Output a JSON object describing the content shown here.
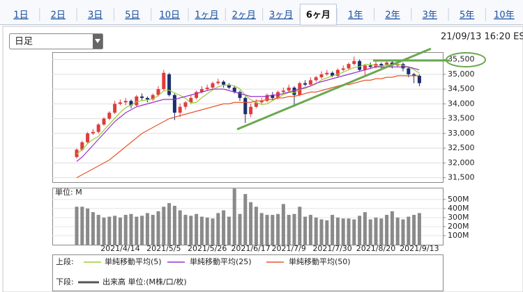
{
  "tabs": [
    "1日",
    "2日",
    "3日",
    "5日",
    "10日",
    "1ヶ月",
    "2ヶ月",
    "3ヶ月",
    "6ヶ月",
    "1年",
    "2年",
    "3年",
    "5年",
    "10年"
  ],
  "selected_tab": 8,
  "dropdown": "日足",
  "timestamp": "21/09/13 16:20 EST",
  "chart_data": {
    "type": "candlestick",
    "categories": [
      null,
      null,
      null,
      null,
      null,
      null,
      null,
      null,
      "2021/4/14",
      null,
      null,
      null,
      null,
      null,
      null,
      null,
      "2021/5/5",
      null,
      null,
      null,
      null,
      null,
      null,
      null,
      "2021/5/26",
      null,
      null,
      null,
      null,
      null,
      null,
      null,
      "2021/6/17",
      null,
      null,
      null,
      null,
      null,
      null,
      "2021/7/9",
      null,
      null,
      null,
      null,
      null,
      null,
      null,
      "2021/7/30",
      null,
      null,
      null,
      null,
      null,
      null,
      null,
      "2021/8/20",
      null,
      null,
      null,
      null,
      null,
      null,
      null,
      "2021/9/13"
    ],
    "open": [
      32200,
      32450,
      32700,
      33000,
      33050,
      33300,
      33500,
      33700,
      34000,
      34050,
      34100,
      33950,
      34250,
      34200,
      34150,
      34300,
      34500,
      35000,
      34300,
      33700,
      33900,
      34050,
      34200,
      34400,
      34500,
      34550,
      34700,
      34750,
      34650,
      34550,
      34400,
      34200,
      33650,
      33900,
      34050,
      34100,
      34300,
      34200,
      34400,
      34450,
      34550,
      34300,
      34700,
      34650,
      34800,
      34900,
      35000,
      35050,
      34950,
      35150,
      35200,
      35350,
      35450,
      35150,
      35300,
      35250,
      35350,
      35300,
      35400,
      35300,
      35350,
      35200,
      35000,
      34950
    ],
    "high": [
      32500,
      32750,
      33050,
      33150,
      33350,
      33550,
      33750,
      34100,
      34150,
      34200,
      34150,
      34300,
      34350,
      34250,
      34350,
      34600,
      35150,
      35050,
      34350,
      34000,
      34100,
      34300,
      34450,
      34600,
      34650,
      34750,
      34850,
      34800,
      34700,
      34600,
      34450,
      34250,
      34000,
      34150,
      34200,
      34350,
      34400,
      34450,
      34550,
      34650,
      34600,
      34750,
      34800,
      34900,
      34950,
      35100,
      35150,
      35100,
      35200,
      35300,
      35400,
      35600,
      35500,
      35350,
      35400,
      35450,
      35400,
      35450,
      35450,
      35400,
      35400,
      35250,
      35050,
      35000
    ],
    "low": [
      32150,
      32400,
      32650,
      32950,
      33000,
      33250,
      33450,
      33650,
      33950,
      33950,
      33850,
      33900,
      34100,
      34050,
      34100,
      34250,
      34450,
      34250,
      33450,
      33550,
      33800,
      34000,
      34150,
      34350,
      34450,
      34500,
      34650,
      34550,
      34500,
      34350,
      34100,
      33350,
      33550,
      33850,
      34000,
      34050,
      34100,
      34150,
      34350,
      34400,
      33900,
      34250,
      34600,
      34600,
      34750,
      34850,
      34950,
      34900,
      34900,
      35100,
      35150,
      35300,
      35100,
      34950,
      35200,
      35200,
      35200,
      35250,
      35200,
      35250,
      35100,
      34900,
      34700,
      34600
    ],
    "close": [
      32450,
      32700,
      33000,
      33050,
      33300,
      33500,
      33700,
      34000,
      34050,
      34100,
      33950,
      34250,
      34200,
      34150,
      34300,
      34500,
      35050,
      34300,
      33700,
      33900,
      34050,
      34200,
      34400,
      34500,
      34550,
      34700,
      34750,
      34650,
      34550,
      34400,
      34200,
      33650,
      33900,
      34050,
      34100,
      34300,
      34200,
      34400,
      34450,
      34550,
      34300,
      34700,
      34650,
      34800,
      34900,
      35000,
      35050,
      34950,
      35150,
      35200,
      35350,
      35450,
      35150,
      35300,
      35250,
      35350,
      35300,
      35400,
      35300,
      35350,
      35200,
      35000,
      34950,
      34700
    ],
    "up_color": "#e03c3c",
    "down_color": "#1c2e6e",
    "series": [
      {
        "name": "単純移動平均(5)",
        "color": "#9acd32",
        "values": [
          32300,
          32450,
          32650,
          32800,
          32900,
          33110,
          33310,
          33510,
          33710,
          33870,
          33960,
          34070,
          34110,
          34130,
          34170,
          34280,
          34440,
          34460,
          34370,
          34290,
          34190,
          34030,
          34050,
          34210,
          34340,
          34470,
          34580,
          34630,
          34640,
          34610,
          34510,
          34290,
          34140,
          34040,
          33980,
          34000,
          34110,
          34210,
          34310,
          34380,
          34380,
          34480,
          34530,
          34600,
          34670,
          34810,
          34880,
          34940,
          35010,
          35070,
          35150,
          35230,
          35260,
          35330,
          35340,
          35300,
          35270,
          35320,
          35320,
          35340,
          35310,
          35250,
          35160,
          35040
        ]
      },
      {
        "name": "単純移動平均(25)",
        "color": "#9b30c8",
        "values": [
          32050,
          32200,
          32400,
          32600,
          32800,
          33000,
          33200,
          33400,
          33550,
          33700,
          33800,
          33900,
          33950,
          34000,
          34050,
          34100,
          34150,
          34150,
          34150,
          34200,
          34250,
          34300,
          34350,
          34400,
          34450,
          34500,
          34500,
          34500,
          34450,
          34400,
          34350,
          34300,
          34250,
          34250,
          34250,
          34250,
          34300,
          34300,
          34350,
          34400,
          34450,
          34500,
          34550,
          34600,
          34700,
          34750,
          34800,
          34850,
          34900,
          34950,
          35000,
          35050,
          35100,
          35150,
          35200,
          35250,
          35250,
          35250,
          35250,
          35250,
          35250,
          35250,
          35200,
          35150
        ]
      },
      {
        "name": "単純移動平均(50)",
        "color": "#e8552a",
        "values": [
          31500,
          31600,
          31700,
          31800,
          31900,
          32000,
          32100,
          32250,
          32400,
          32550,
          32700,
          32850,
          33000,
          33100,
          33200,
          33300,
          33400,
          33500,
          33550,
          33600,
          33650,
          33700,
          33750,
          33800,
          33850,
          33900,
          33950,
          34000,
          34000,
          34050,
          34050,
          34050,
          34050,
          34100,
          34100,
          34150,
          34150,
          34200,
          34200,
          34250,
          34250,
          34300,
          34350,
          34400,
          34400,
          34450,
          34500,
          34550,
          34600,
          34650,
          34650,
          34700,
          34750,
          34800,
          34800,
          34850,
          34850,
          34900,
          34900,
          34950,
          34950,
          34950,
          34950,
          34950
        ]
      }
    ],
    "ylim": [
      31350,
      35750
    ],
    "yticks": [
      {
        "value": 31500,
        "label": "31,500"
      },
      {
        "value": 32000,
        "label": "32,000"
      },
      {
        "value": 32500,
        "label": "32,500"
      },
      {
        "value": 33000,
        "label": "33,000"
      },
      {
        "value": 33500,
        "label": "33,500"
      },
      {
        "value": 34000,
        "label": "34,000"
      },
      {
        "value": 34500,
        "label": "34,500"
      },
      {
        "value": 35000,
        "label": "35,000"
      },
      {
        "value": 35500,
        "label": "35,500"
      }
    ],
    "grid": true,
    "legend_upper": "上段:",
    "legend_lower": "下段:",
    "volume": {
      "name": "出来高 単位:(M株/口/枚)",
      "unit_label": "単位: M",
      "color": "#8a8a8a",
      "values": [
        420,
        420,
        400,
        360,
        330,
        300,
        310,
        320,
        300,
        330,
        340,
        310,
        320,
        350,
        330,
        370,
        420,
        460,
        430,
        380,
        330,
        320,
        340,
        310,
        300,
        290,
        350,
        380,
        310,
        620,
        340,
        560,
        470,
        420,
        350,
        330,
        330,
        340,
        450,
        330,
        340,
        420,
        310,
        330,
        300,
        280,
        270,
        330,
        300,
        290,
        290,
        280,
        320,
        360,
        280,
        300,
        290,
        330,
        370,
        300,
        280,
        310,
        330,
        350
      ],
      "ylim": [
        0,
        630
      ],
      "yticks": [
        {
          "value": 100,
          "label": "100M"
        },
        {
          "value": 200,
          "label": "200M"
        },
        {
          "value": 300,
          "label": "300M"
        },
        {
          "value": 400,
          "label": "400M"
        },
        {
          "value": 500,
          "label": "500M"
        }
      ]
    }
  }
}
